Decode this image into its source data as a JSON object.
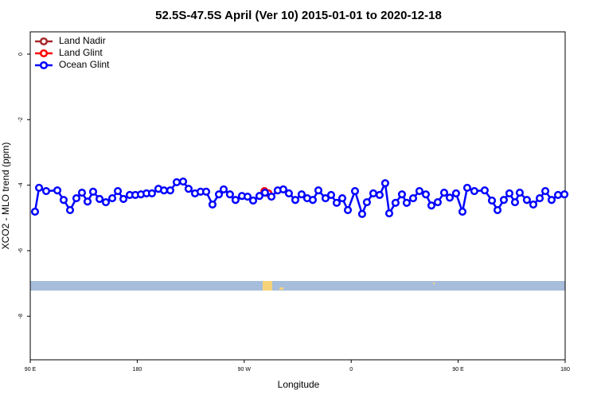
{
  "chart_data": {
    "type": "line",
    "title": "52.5S-47.5S April (Ver 10)   2015-01-01 to 2020-12-18",
    "x_label": "Longitude",
    "y_label": "XCO2 - MLO trend (ppm)",
    "xlim": [
      90,
      540
    ],
    "xticks": [
      {
        "value": 90,
        "label": "90 E"
      },
      180,
      {
        "value": 270,
        "label": "90 W"
      },
      {
        "value": 360,
        "label": "0"
      },
      {
        "value": 450,
        "label": "90 E"
      },
      {
        "value": 540,
        "label": "180"
      }
    ],
    "ylim": [
      -9.33,
      0.68
    ],
    "yticks": [
      -8,
      -6,
      -4,
      -2,
      0
    ],
    "legend": "top-left",
    "series": [
      {
        "name": "Land Nadir",
        "color": "#a52a2a",
        "x": [],
        "values": []
      },
      {
        "name": "Land Glint",
        "color": "#ff0000",
        "x": [
          287.0,
          290.4
        ],
        "values": [
          -4.18,
          -4.25
        ]
      },
      {
        "name": "Ocean Glint",
        "color": "#0000ff",
        "x": [
          94.0,
          97.4,
          103.4,
          112.8,
          118.1,
          123.5,
          128.8,
          133.5,
          138.2,
          142.9,
          148.3,
          153.6,
          159.0,
          163.7,
          168.4,
          173.7,
          178.4,
          183.1,
          187.8,
          192.4,
          197.8,
          202.5,
          207.8,
          213.2,
          218.6,
          223.2,
          228.6,
          233.3,
          238.0,
          243.3,
          248.7,
          252.7,
          258.0,
          262.7,
          268.1,
          272.8,
          277.5,
          282.8,
          287.5,
          292.9,
          298.2,
          302.9,
          307.6,
          313.0,
          318.3,
          323.0,
          327.7,
          332.4,
          338.4,
          343.1,
          347.8,
          352.5,
          357.2,
          363.2,
          369.2,
          373.2,
          378.6,
          383.9,
          388.6,
          392.0,
          397.3,
          402.7,
          406.7,
          412.1,
          417.4,
          422.8,
          427.5,
          432.8,
          438.2,
          442.9,
          448.2,
          453.6,
          457.6,
          463.6,
          472.3,
          478.4,
          483.1,
          488.4,
          493.1,
          497.8,
          501.8,
          507.8,
          513.2,
          518.6,
          523.3,
          528.6,
          534.0,
          539.4
        ],
        "values": [
          -4.81,
          -4.08,
          -4.18,
          -4.16,
          -4.45,
          -4.76,
          -4.4,
          -4.23,
          -4.5,
          -4.2,
          -4.42,
          -4.52,
          -4.4,
          -4.18,
          -4.42,
          -4.3,
          -4.3,
          -4.28,
          -4.25,
          -4.25,
          -4.11,
          -4.16,
          -4.16,
          -3.91,
          -3.89,
          -4.11,
          -4.25,
          -4.2,
          -4.2,
          -4.59,
          -4.28,
          -4.13,
          -4.28,
          -4.45,
          -4.33,
          -4.35,
          -4.47,
          -4.33,
          -4.23,
          -4.35,
          -4.16,
          -4.13,
          -4.25,
          -4.45,
          -4.28,
          -4.4,
          -4.45,
          -4.16,
          -4.4,
          -4.3,
          -4.54,
          -4.4,
          -4.76,
          -4.18,
          -4.88,
          -4.52,
          -4.25,
          -4.3,
          -3.94,
          -4.86,
          -4.54,
          -4.28,
          -4.54,
          -4.4,
          -4.18,
          -4.28,
          -4.62,
          -4.52,
          -4.23,
          -4.38,
          -4.25,
          -4.81,
          -4.08,
          -4.18,
          -4.16,
          -4.47,
          -4.76,
          -4.45,
          -4.25,
          -4.52,
          -4.23,
          -4.45,
          -4.59,
          -4.4,
          -4.18,
          -4.45,
          -4.3,
          -4.28
        ]
      }
    ]
  }
}
